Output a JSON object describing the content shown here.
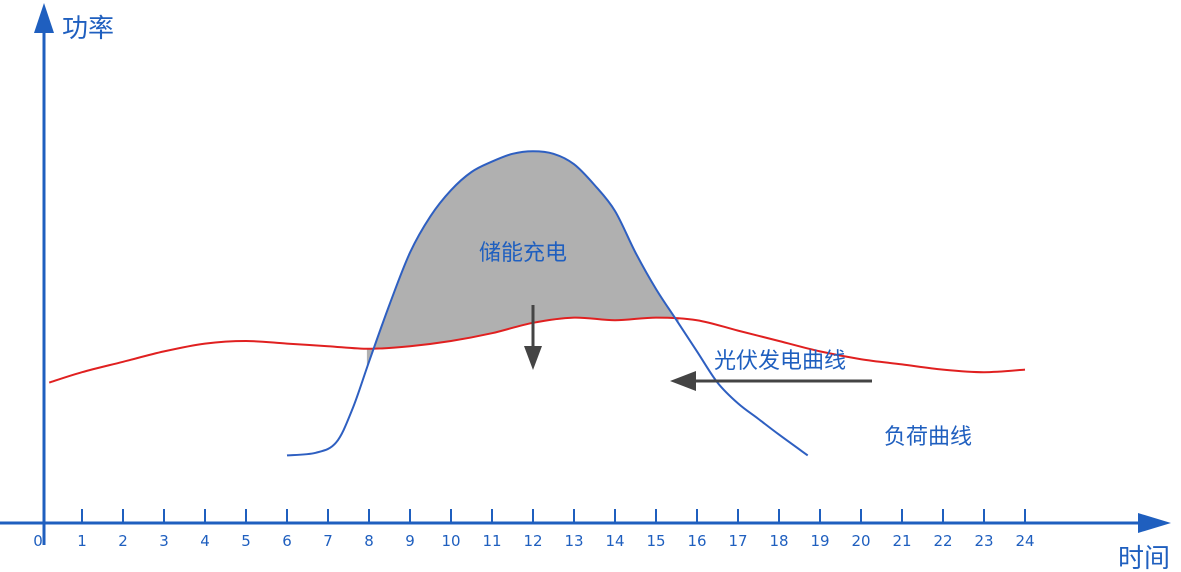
{
  "chart_data": {
    "type": "line",
    "ylabel": "功率",
    "xlabel": "时间",
    "x_ticks": [
      "0",
      "1",
      "2",
      "3",
      "4",
      "5",
      "6",
      "7",
      "8",
      "9",
      "10",
      "11",
      "12",
      "13",
      "14",
      "15",
      "16",
      "17",
      "18",
      "19",
      "20",
      "21",
      "22",
      "23",
      "24"
    ],
    "xlim": [
      0,
      24
    ],
    "grid": false,
    "series": [
      {
        "name": "负荷曲线",
        "color": "#e02020",
        "points": [
          [
            0.2,
            0.27
          ],
          [
            1,
            0.29
          ],
          [
            2,
            0.31
          ],
          [
            3,
            0.33
          ],
          [
            4,
            0.345
          ],
          [
            5,
            0.35
          ],
          [
            6,
            0.345
          ],
          [
            7,
            0.34
          ],
          [
            8,
            0.335
          ],
          [
            9,
            0.34
          ],
          [
            10,
            0.35
          ],
          [
            11,
            0.365
          ],
          [
            12,
            0.385
          ],
          [
            13,
            0.395
          ],
          [
            14,
            0.39
          ],
          [
            15,
            0.395
          ],
          [
            16,
            0.39
          ],
          [
            17,
            0.37
          ],
          [
            18,
            0.35
          ],
          [
            19,
            0.33
          ],
          [
            20,
            0.315
          ],
          [
            21,
            0.305
          ],
          [
            22,
            0.295
          ],
          [
            23,
            0.29
          ],
          [
            24,
            0.295
          ]
        ]
      },
      {
        "name": "光伏发电曲线",
        "color": "#2e5fc1",
        "points": [
          [
            6,
            0.13
          ],
          [
            6.7,
            0.135
          ],
          [
            7.2,
            0.155
          ],
          [
            7.6,
            0.22
          ],
          [
            8,
            0.31
          ],
          [
            8.5,
            0.42
          ],
          [
            9,
            0.52
          ],
          [
            9.5,
            0.59
          ],
          [
            10,
            0.64
          ],
          [
            10.5,
            0.675
          ],
          [
            11,
            0.695
          ],
          [
            11.5,
            0.71
          ],
          [
            12,
            0.715
          ],
          [
            12.5,
            0.71
          ],
          [
            13,
            0.69
          ],
          [
            13.5,
            0.65
          ],
          [
            14,
            0.6
          ],
          [
            14.5,
            0.52
          ],
          [
            15,
            0.45
          ],
          [
            15.5,
            0.39
          ],
          [
            16,
            0.33
          ],
          [
            16.5,
            0.27
          ],
          [
            17,
            0.23
          ],
          [
            17.5,
            0.2
          ],
          [
            18,
            0.17
          ],
          [
            18.7,
            0.13
          ]
        ]
      }
    ],
    "shaded_region": {
      "label": "储能充电",
      "fill": "#b0b0b0",
      "between": [
        "光伏发电曲线",
        "负荷曲线"
      ],
      "x_range": [
        7.95,
        15.55
      ]
    },
    "annotations": [
      {
        "key": "storage",
        "text": "储能充电"
      },
      {
        "key": "pv",
        "text": "光伏发电曲线"
      },
      {
        "key": "load",
        "text": "负荷曲线"
      }
    ],
    "colors": {
      "axis": "#1f5fbf",
      "text": "#1f5fbf",
      "arrow": "#444444"
    }
  }
}
